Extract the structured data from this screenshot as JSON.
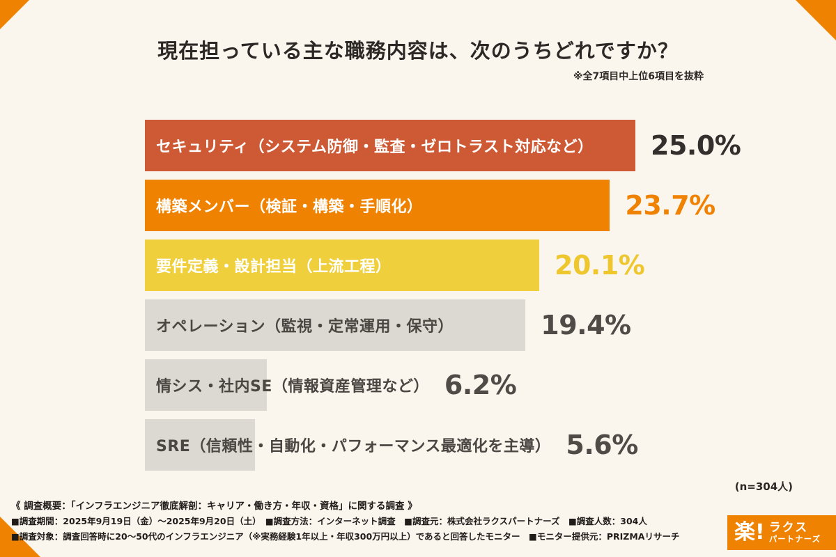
{
  "title": "現在担っている主な職務内容は、次のうちどれですか？",
  "subtitle": "※全7項目中上位6項目を抜粋",
  "sample_note": "(n=304人)",
  "chart_data": {
    "type": "bar",
    "orientation": "horizontal",
    "title": "現在担っている主な職務内容は、次のうちどれですか？",
    "categories": [
      "セキュリティ（システム防御・監査・ゼロトラスト対応など）",
      "構築メンバー（検証・構築・手順化）",
      "要件定義・設計担当（上流工程）",
      "オペレーション（監視・定常運用・保守）",
      "情シス・社内SE（情報資産管理など）",
      "SRE（信頼性・自動化・パフォーマンス最適化を主導）"
    ],
    "values": [
      25.0,
      23.7,
      20.1,
      19.4,
      6.2,
      5.6
    ],
    "value_labels": [
      "25.0%",
      "23.7%",
      "20.1%",
      "19.4%",
      "6.2%",
      "5.6%"
    ],
    "bar_colors": [
      "#ce5a35",
      "#ef8200",
      "#efd03c",
      "#dcd8d2",
      "#dcd8d2",
      "#dcd8d2"
    ],
    "category_text_colors": [
      "#ffffff",
      "#ffffff",
      "#ffffff",
      "#4a4642",
      "#4a4642",
      "#4a4642"
    ],
    "value_text_colors": [
      "#332f2c",
      "#ef8200",
      "#eec72e",
      "#4f4b47",
      "#4f4b47",
      "#4f4b47"
    ],
    "xlim": [
      0,
      25.0
    ],
    "grid": false,
    "legend": false,
    "sample_size": "n=304人"
  },
  "footer": {
    "line1": "《 調査概要：「インフラエンジニア徹底解剖：キャリア・働き方・年収・資格」に関する調査 》",
    "line2": "■調査期間：2025年9月19日（金）〜2025年9月20日（土）　■調査方法：インターネット調査　■調査元：株式会社ラクスパートナーズ　■調査人数：304人",
    "line3": "■調査対象：調査回答時に20〜50代のインフラエンジニア（※実務経験1年以上・年収300万円以上）であると回答したモニター　■モニター提供元：PRIZMAリサーチ"
  },
  "logo": {
    "mark": "楽!",
    "name_top": "ラクス",
    "name_bottom": "パートナーズ"
  },
  "colors": {
    "accent": "#ef8200",
    "background": "#faf5ed"
  }
}
